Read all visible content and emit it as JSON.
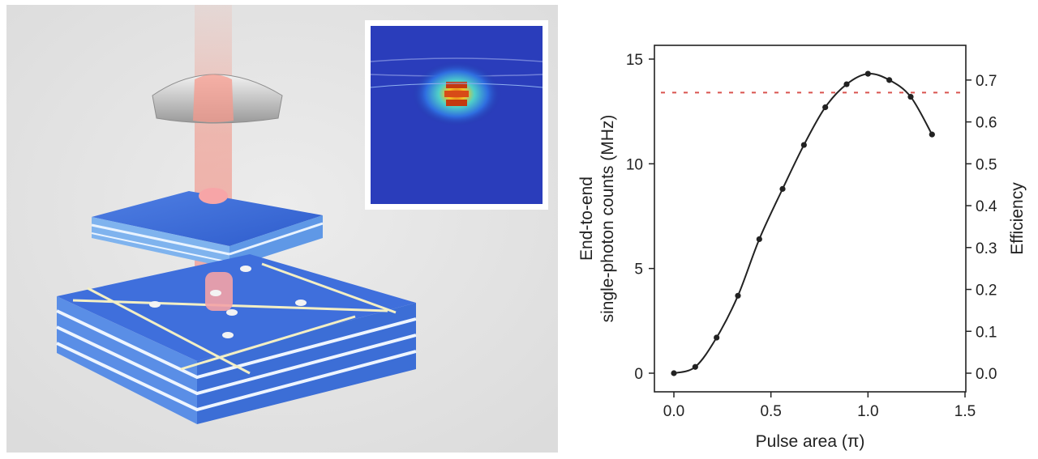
{
  "chart_data": {
    "type": "line",
    "title": "",
    "xlabel": "Pulse area (π)",
    "ylabel_line1": "End-to-end",
    "ylabel_line2": "single-photon counts (MHz)",
    "y2label": "Efficiency",
    "xlim": [
      0.0,
      1.5
    ],
    "ylim": [
      0,
      15
    ],
    "y2lim": [
      0,
      0.75
    ],
    "x_ticks": [
      "0.0",
      "0.5",
      "1.0",
      "1.5"
    ],
    "y_ticks": [
      "0",
      "5",
      "10",
      "15"
    ],
    "y2_ticks": [
      "0.0",
      "0.1",
      "0.2",
      "0.3",
      "0.4",
      "0.5",
      "0.6",
      "0.7"
    ],
    "grid": false,
    "series": [
      {
        "values_x": [
          0.0,
          0.11,
          0.22,
          0.33,
          0.44,
          0.56,
          0.67,
          0.78,
          0.89,
          1.0,
          1.11,
          1.22,
          1.33
        ],
        "values_y": [
          0.0,
          0.3,
          1.7,
          3.7,
          6.4,
          8.8,
          10.9,
          12.7,
          13.8,
          14.3,
          14.0,
          13.2,
          11.4
        ],
        "color": "#222222"
      }
    ],
    "reference_line": {
      "y": 13.4,
      "style": "dashed",
      "color": "#d9534f"
    }
  },
  "colors": {
    "axis": "#222222",
    "line": "#222222",
    "reference": "#d9534f"
  }
}
